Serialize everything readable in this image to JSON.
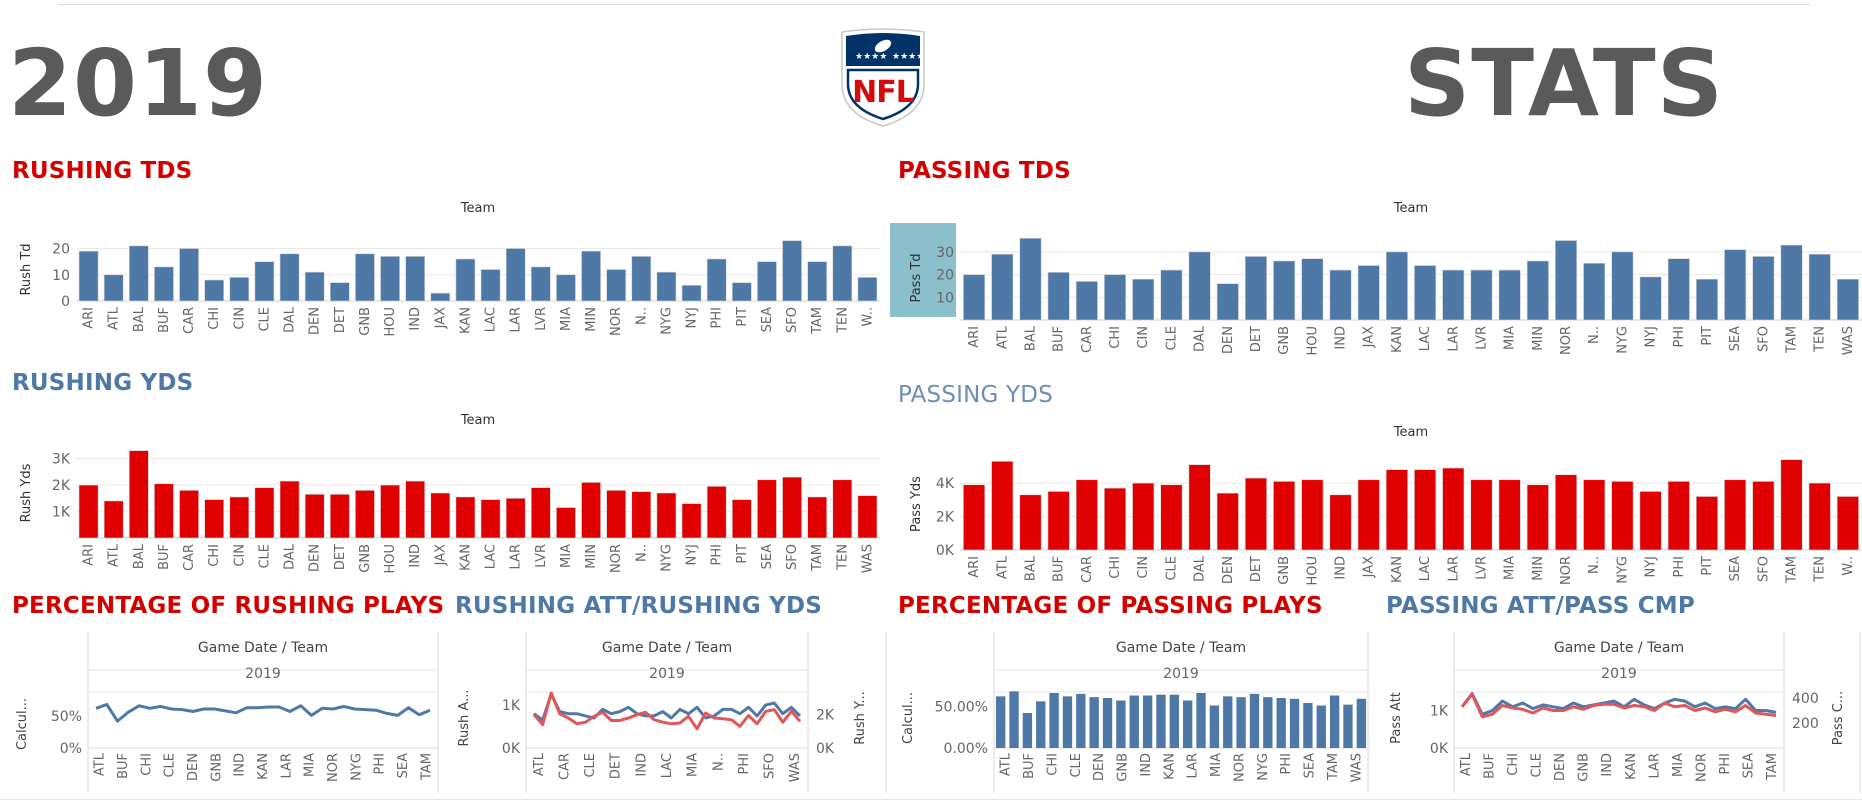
{
  "header": {
    "year": "2019",
    "stats_word": "STATS",
    "logo_text": "NFL"
  },
  "colors": {
    "red": "#e00000",
    "blue": "#4e79a7",
    "line_red": "#e15759",
    "grey_text": "#5a5a5a",
    "highlight": "#8bbfcc"
  },
  "chart_data": [
    {
      "id": "rushing-tds",
      "type": "bar",
      "title": "RUSHING TDS",
      "xlabel": "Team",
      "ylabel": "Rush Td",
      "categories": [
        "ARI",
        "ATL",
        "BAL",
        "BUF",
        "CAR",
        "CHI",
        "CIN",
        "CLE",
        "DAL",
        "DEN",
        "DET",
        "GNB",
        "HOU",
        "IND",
        "JAX",
        "KAN",
        "LAC",
        "LAR",
        "LVR",
        "MIA",
        "MIN",
        "NOR",
        "N..",
        "NYG",
        "NYJ",
        "PHI",
        "PIT",
        "SEA",
        "SFO",
        "TAM",
        "TEN",
        "W.."
      ],
      "values": [
        19,
        10,
        21,
        13,
        20,
        8,
        9,
        15,
        18,
        11,
        7,
        18,
        17,
        17,
        3,
        16,
        12,
        20,
        13,
        10,
        19,
        12,
        17,
        11,
        6,
        16,
        7,
        15,
        23,
        15,
        21,
        9
      ],
      "yticks": [
        "0",
        "10",
        "20"
      ],
      "ylim": [
        0,
        24
      ],
      "color": "#4e79a7"
    },
    {
      "id": "passing-tds",
      "type": "bar",
      "title": "PASSING TDS",
      "xlabel": "Team",
      "ylabel": "Pass Td",
      "categories": [
        "ARI",
        "ATL",
        "BAL",
        "BUF",
        "CAR",
        "CHI",
        "CIN",
        "CLE",
        "DAL",
        "DEN",
        "DET",
        "GNB",
        "HOU",
        "IND",
        "JAX",
        "KAN",
        "LAC",
        "LAR",
        "LVR",
        "MIA",
        "MIN",
        "NOR",
        "N..",
        "NYG",
        "NYJ",
        "PHI",
        "PIT",
        "SEA",
        "SFO",
        "TAM",
        "TEN",
        "WAS"
      ],
      "values": [
        20,
        29,
        36,
        21,
        17,
        20,
        18,
        22,
        30,
        16,
        28,
        26,
        27,
        22,
        24,
        30,
        24,
        22,
        22,
        22,
        26,
        35,
        25,
        30,
        19,
        27,
        18,
        31,
        28,
        33,
        29,
        18
      ],
      "yticks": [
        "10",
        "20",
        "30"
      ],
      "ylim": [
        0,
        37
      ],
      "color": "#4e79a7"
    },
    {
      "id": "rushing-yds",
      "type": "bar",
      "title": "RUSHING YDS",
      "xlabel": "Team",
      "ylabel": "Rush Yds",
      "categories": [
        "ARI",
        "ATL",
        "BAL",
        "BUF",
        "CAR",
        "CHI",
        "CIN",
        "CLE",
        "DAL",
        "DEN",
        "DET",
        "GNB",
        "HOU",
        "IND",
        "JAX",
        "KAN",
        "LAC",
        "LAR",
        "LVR",
        "MIA",
        "MIN",
        "NOR",
        "N..",
        "NYG",
        "NYJ",
        "PHI",
        "PIT",
        "SEA",
        "SFO",
        "TAM",
        "TEN",
        "WAS"
      ],
      "values": [
        2000,
        1400,
        3300,
        2050,
        1800,
        1450,
        1550,
        1900,
        2150,
        1650,
        1650,
        1800,
        2000,
        2150,
        1700,
        1550,
        1450,
        1500,
        1900,
        1150,
        2100,
        1800,
        1750,
        1700,
        1300,
        1950,
        1450,
        2200,
        2300,
        1550,
        2200,
        1600
      ],
      "yticks": [
        "1K",
        "2K",
        "3K"
      ],
      "ylim": [
        0,
        3400
      ],
      "color": "#e00000"
    },
    {
      "id": "passing-yds",
      "type": "bar",
      "title": "PASSING YDS",
      "xlabel": "Team",
      "ylabel": "Pass Yds",
      "categories": [
        "ARI",
        "ATL",
        "BAL",
        "BUF",
        "CAR",
        "CHI",
        "CIN",
        "CLE",
        "DAL",
        "DEN",
        "DET",
        "GNB",
        "HOU",
        "IND",
        "JAX",
        "KAN",
        "LAC",
        "LAR",
        "LVR",
        "MIA",
        "MIN",
        "NOR",
        "N..",
        "NYG",
        "NYJ",
        "PHI",
        "PIT",
        "SEA",
        "SFO",
        "TAM",
        "TEN",
        "W.."
      ],
      "values": [
        3900,
        5300,
        3300,
        3500,
        4200,
        3700,
        4000,
        3900,
        5100,
        3400,
        4300,
        4100,
        4200,
        3300,
        4200,
        4800,
        4800,
        4900,
        4200,
        4200,
        3900,
        4500,
        4200,
        4100,
        3500,
        4100,
        3200,
        4200,
        4100,
        5400,
        4000,
        3200
      ],
      "yticks": [
        "0K",
        "2K",
        "4K"
      ],
      "ylim": [
        0,
        5500
      ],
      "color": "#e00000"
    },
    {
      "id": "pct-rushing-plays",
      "type": "line",
      "title": "PERCENTAGE OF RUSHING PLAYS",
      "header_top": "Game Date / Team",
      "header_sub": "2019",
      "ylabel": "Calcul...",
      "xticks": [
        "ATL",
        "BUF",
        "CHI",
        "CLE",
        "DEN",
        "GNB",
        "IND",
        "KAN",
        "LAR",
        "MIA",
        "NOR",
        "NYG",
        "PHI",
        "SEA",
        "TAM"
      ],
      "values": [
        62,
        68,
        42,
        56,
        66,
        62,
        65,
        61,
        60,
        57,
        61,
        61,
        58,
        55,
        63,
        63,
        64,
        64,
        57,
        66,
        51,
        62,
        61,
        65,
        61,
        60,
        59,
        54,
        51,
        63,
        52,
        59
      ],
      "yticks": [
        "0%",
        "50%"
      ],
      "ylim": [
        0,
        75
      ],
      "color": "#4e79a7"
    },
    {
      "id": "rushing-att-yds",
      "type": "line",
      "title": "RUSHING ATT/RUSHING YDS",
      "header_top": "Game Date / Team",
      "header_sub": "2019",
      "ylabel": "Rush A...",
      "ylabel2": "Rush Y...",
      "xticks": [
        "ATL",
        "CAR",
        "CLE",
        "DET",
        "IND",
        "LAC",
        "MIA",
        "N..",
        "PHI",
        "SFO",
        "WAS"
      ],
      "series": [
        {
          "name": "Rush Att",
          "values": [
            800,
            650,
            1250,
            850,
            800,
            800,
            750,
            700,
            900,
            800,
            850,
            950,
            800,
            750,
            750,
            850,
            700,
            900,
            800,
            950,
            700,
            750,
            900,
            900,
            800,
            950,
            750,
            1000,
            1050,
            800,
            950,
            750
          ],
          "color": "#4e79a7"
        },
        {
          "name": "Rush Yds",
          "values": [
            2000,
            1400,
            3300,
            2050,
            1800,
            1450,
            1550,
            1900,
            2150,
            1650,
            1650,
            1800,
            2000,
            2150,
            1700,
            1550,
            1450,
            1500,
            1900,
            1150,
            2100,
            1800,
            1750,
            1700,
            1300,
            1950,
            1450,
            2200,
            2300,
            1550,
            2200,
            1600
          ],
          "color": "#e15759"
        }
      ],
      "yticks": [
        "0K",
        "1K"
      ],
      "ylim": [
        0,
        1400
      ],
      "yticks2": [
        "0K",
        "2K"
      ],
      "ylim2": [
        0,
        3600
      ]
    },
    {
      "id": "pct-passing-plays",
      "type": "bar",
      "title": "PERCENTAGE OF PASSING PLAYS",
      "header_top": "Game Date / Team",
      "header_sub": "2019",
      "ylabel": "Calcul...",
      "xticks": [
        "ATL",
        "BUF",
        "CHI",
        "CLE",
        "DEN",
        "GNB",
        "IND",
        "KAN",
        "LAR",
        "MIA",
        "NOR",
        "NYG",
        "PHI",
        "SEA",
        "TAM",
        "WAS"
      ],
      "values": [
        62,
        68,
        42,
        56,
        66,
        62,
        65,
        61,
        60,
        57,
        63,
        63,
        64,
        64,
        57,
        66,
        51,
        62,
        61,
        65,
        61,
        60,
        59,
        54,
        51,
        63,
        52,
        59
      ],
      "yticks": [
        "0.00%",
        "50.00%"
      ],
      "ylim": [
        0,
        72
      ],
      "color": "#4e79a7"
    },
    {
      "id": "passing-att-cmp",
      "type": "line",
      "title": "PASSING ATT/PASS CMP",
      "header_top": "Game Date / Team",
      "header_sub": "2019",
      "ylabel": "Pass Att",
      "ylabel2": "Pass C...",
      "xticks": [
        "ATL",
        "BUF",
        "CHI",
        "CLE",
        "DEN",
        "GNB",
        "IND",
        "KAN",
        "LAR",
        "MIA",
        "NOR",
        "PHI",
        "SEA",
        "TAM"
      ],
      "series": [
        {
          "name": "Pass Att",
          "values": [
            1100,
            1450,
            900,
            1000,
            1250,
            1100,
            1200,
            1050,
            1150,
            1100,
            1050,
            1200,
            1100,
            1150,
            1200,
            1250,
            1100,
            1300,
            1150,
            1050,
            1200,
            1300,
            1250,
            1100,
            1200,
            1050,
            1100,
            1050,
            1300,
            1000,
            1000,
            950
          ],
          "color": "#4e79a7"
        },
        {
          "name": "Pass Cmp",
          "values": [
            330,
            430,
            250,
            270,
            340,
            320,
            310,
            280,
            320,
            300,
            300,
            330,
            310,
            340,
            350,
            350,
            320,
            340,
            330,
            300,
            360,
            330,
            340,
            300,
            320,
            290,
            310,
            290,
            340,
            280,
            270,
            260
          ],
          "color": "#e15759"
        }
      ],
      "yticks": [
        "0K",
        "1K"
      ],
      "ylim": [
        0,
        1600
      ],
      "yticks2": [
        "200",
        "400"
      ],
      "ylim2": [
        0,
        480
      ]
    }
  ]
}
